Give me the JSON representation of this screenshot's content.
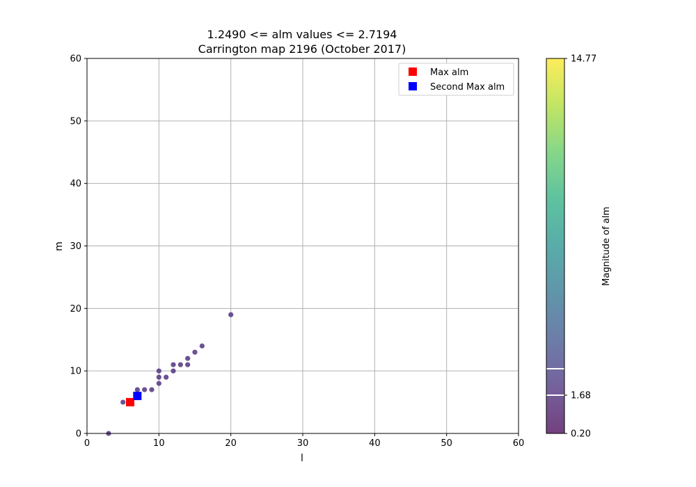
{
  "chart_data": {
    "type": "scatter",
    "title": [
      "1.2490 <= alm values <= 2.7194",
      "Carrington map 2196 (October 2017)"
    ],
    "xlabel": "l",
    "ylabel": "m",
    "xlim": [
      0,
      60
    ],
    "ylim": [
      0,
      60
    ],
    "xticks": [
      "0",
      "10",
      "20",
      "30",
      "40",
      "50",
      "60"
    ],
    "yticks": [
      "0",
      "10",
      "20",
      "30",
      "40",
      "50",
      "60"
    ],
    "grid": true,
    "legend_position": "top-right",
    "series": [
      {
        "kind": "points",
        "color": "#5b3f86",
        "points": [
          [
            3,
            0
          ],
          [
            5,
            5
          ],
          [
            6,
            5
          ],
          [
            7,
            6
          ],
          [
            7,
            7
          ],
          [
            8,
            7
          ],
          [
            9,
            7
          ],
          [
            10,
            8
          ],
          [
            10,
            9
          ],
          [
            10,
            10
          ],
          [
            11,
            9
          ],
          [
            12,
            10
          ],
          [
            12,
            11
          ],
          [
            13,
            11
          ],
          [
            14,
            11
          ],
          [
            14,
            12
          ],
          [
            15,
            13
          ],
          [
            16,
            14
          ],
          [
            20,
            19
          ]
        ]
      },
      {
        "name": "Max alm",
        "kind": "marker",
        "color": "#ff0000",
        "points": [
          [
            6,
            5
          ]
        ]
      },
      {
        "name": "Second Max alm",
        "kind": "marker",
        "color": "#0000ff",
        "points": [
          [
            7,
            6
          ]
        ]
      }
    ],
    "colorbar": {
      "label": "Magnitude of alm",
      "colormap": "viridis",
      "range": [
        0.2,
        14.77
      ],
      "ticks": [
        "0.20",
        "1.68",
        "14.77"
      ],
      "tick_values": [
        0.2,
        1.68,
        14.77
      ],
      "bounds": [
        1.249,
        2.7194
      ],
      "bound_line_color": "#ffffff"
    }
  }
}
